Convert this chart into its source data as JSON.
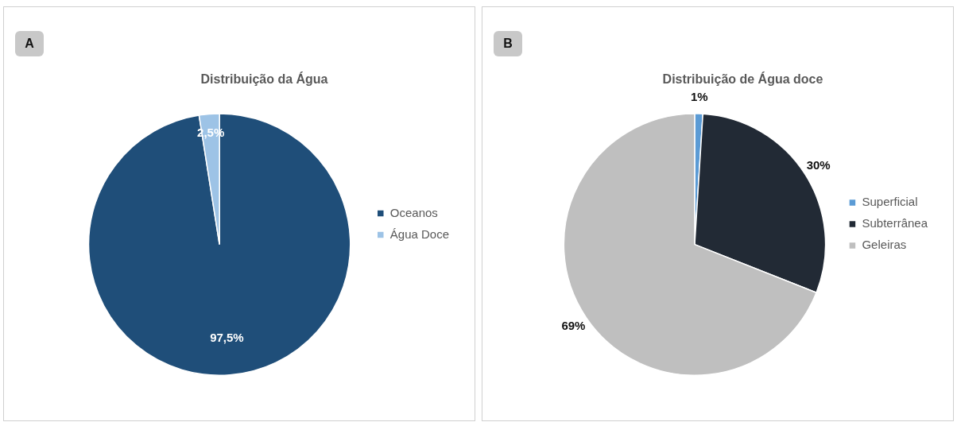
{
  "chart_data": [
    {
      "type": "pie",
      "title": "Distribuição da Água",
      "annotations": [
        "A"
      ],
      "categories": [
        "Oceanos",
        "Água Doce"
      ],
      "values": [
        97.5,
        2.5
      ],
      "colors": [
        "#1f4e79",
        "#9dc3e6"
      ],
      "value_labels": [
        "97,5%",
        "2,5%"
      ],
      "legend": "right"
    },
    {
      "type": "pie",
      "title": "Distribuição de Água doce",
      "annotations": [
        "B"
      ],
      "categories": [
        "Superficial",
        "Subterrânea",
        "Geleiras"
      ],
      "values": [
        1,
        30,
        69
      ],
      "colors": [
        "#5b9bd5",
        "#222a35",
        "#bfbfbf"
      ],
      "value_labels": [
        "1%",
        "30%",
        "69%"
      ],
      "legend": "right"
    }
  ]
}
